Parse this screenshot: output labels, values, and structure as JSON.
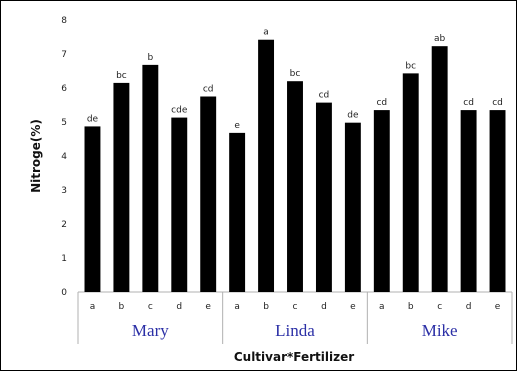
{
  "chart_data": {
    "type": "bar",
    "xlabel": "Cultivar*Fertilizer",
    "ylabel": "Nitroge(%)",
    "ylim": [
      0,
      8
    ],
    "yticks": [
      0,
      1,
      2,
      3,
      4,
      5,
      6,
      7,
      8
    ],
    "grid": false,
    "legend": "none",
    "bar_color": "#000000",
    "group_label_color": "#2b2fa6",
    "groups": [
      {
        "name": "Mary",
        "bars": [
          {
            "category": "a",
            "value": 4.87,
            "label": "de"
          },
          {
            "category": "b",
            "value": 6.15,
            "label": "bc"
          },
          {
            "category": "c",
            "value": 6.68,
            "label": "b"
          },
          {
            "category": "d",
            "value": 5.13,
            "label": "cde"
          },
          {
            "category": "e",
            "value": 5.75,
            "label": "cd"
          }
        ]
      },
      {
        "name": "Linda",
        "bars": [
          {
            "category": "a",
            "value": 4.68,
            "label": "e"
          },
          {
            "category": "b",
            "value": 7.42,
            "label": "a"
          },
          {
            "category": "c",
            "value": 6.2,
            "label": "bc"
          },
          {
            "category": "d",
            "value": 5.57,
            "label": "cd"
          },
          {
            "category": "e",
            "value": 4.98,
            "label": "de"
          }
        ]
      },
      {
        "name": "Mike",
        "bars": [
          {
            "category": "a",
            "value": 5.35,
            "label": "cd"
          },
          {
            "category": "b",
            "value": 6.43,
            "label": "bc"
          },
          {
            "category": "c",
            "value": 7.23,
            "label": "ab"
          },
          {
            "category": "d",
            "value": 5.35,
            "label": "cd"
          },
          {
            "category": "e",
            "value": 5.35,
            "label": "cd"
          }
        ]
      }
    ]
  }
}
